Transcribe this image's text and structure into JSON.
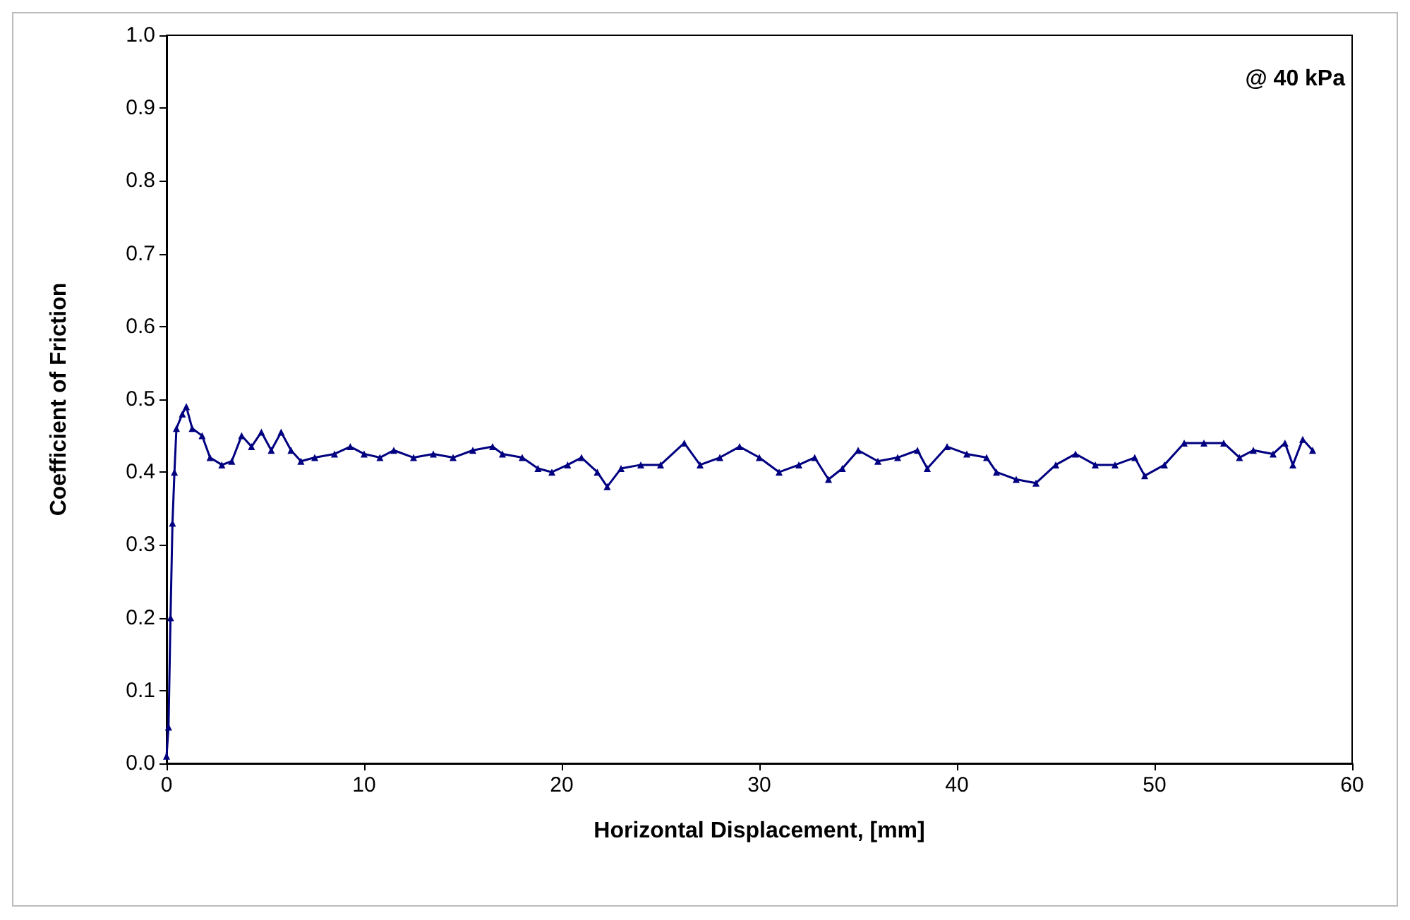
{
  "chart_data": {
    "type": "line",
    "xlabel": "Horizontal Displacement, [mm]",
    "ylabel": "Coefficient of Friction",
    "annotations": [
      "@ 40 kPa"
    ],
    "x": [
      0,
      0.1,
      0.2,
      0.3,
      0.4,
      0.5,
      0.8,
      1.0,
      1.3,
      1.8,
      2.2,
      2.8,
      3.3,
      3.8,
      4.3,
      4.8,
      5.3,
      5.8,
      6.3,
      6.8,
      7.5,
      8.5,
      9.3,
      10,
      10.8,
      11.5,
      12.5,
      13.5,
      14.5,
      15.5,
      16.5,
      17,
      18,
      18.8,
      19.5,
      20.3,
      21,
      21.8,
      22.3,
      23,
      24,
      25,
      26.2,
      27,
      28,
      29,
      30,
      31,
      32,
      32.8,
      33.5,
      34.2,
      35,
      36,
      37,
      38,
      38.5,
      39.5,
      40.5,
      41.5,
      42,
      43,
      44,
      45,
      46,
      47,
      48,
      49,
      49.5,
      50.5,
      51.5,
      52.5,
      53.5,
      54.3,
      55,
      56,
      56.6,
      57,
      57.5,
      58
    ],
    "series": [
      {
        "color": "#000080",
        "values": [
          0.01,
          0.05,
          0.2,
          0.33,
          0.4,
          0.46,
          0.48,
          0.49,
          0.46,
          0.45,
          0.42,
          0.41,
          0.415,
          0.45,
          0.435,
          0.455,
          0.43,
          0.455,
          0.43,
          0.415,
          0.42,
          0.425,
          0.435,
          0.425,
          0.42,
          0.43,
          0.42,
          0.425,
          0.42,
          0.43,
          0.435,
          0.425,
          0.42,
          0.405,
          0.4,
          0.41,
          0.42,
          0.4,
          0.38,
          0.405,
          0.41,
          0.41,
          0.44,
          0.41,
          0.42,
          0.435,
          0.42,
          0.4,
          0.41,
          0.42,
          0.39,
          0.405,
          0.43,
          0.415,
          0.42,
          0.43,
          0.405,
          0.435,
          0.425,
          0.42,
          0.4,
          0.39,
          0.385,
          0.41,
          0.425,
          0.41,
          0.41,
          0.42,
          0.395,
          0.41,
          0.44,
          0.44,
          0.44,
          0.42,
          0.43,
          0.425,
          0.44,
          0.41,
          0.445,
          0.43
        ]
      }
    ],
    "xlim": [
      0,
      60
    ],
    "xticks": [
      0,
      10,
      20,
      30,
      40,
      50,
      60
    ],
    "ylim": [
      0,
      1
    ],
    "yticks": [
      {
        "value": 0,
        "label": "0.0"
      },
      {
        "value": 0.1,
        "label": "0.1"
      },
      {
        "value": 0.2,
        "label": "0.2"
      },
      {
        "value": 0.3,
        "label": "0.3"
      },
      {
        "value": 0.4,
        "label": "0.4"
      },
      {
        "value": 0.5,
        "label": "0.5"
      },
      {
        "value": 0.6,
        "label": "0.6"
      },
      {
        "value": 0.7,
        "label": "0.7"
      },
      {
        "value": 0.8,
        "label": "0.8"
      },
      {
        "value": 0.9,
        "label": "0.9"
      },
      {
        "value": 1,
        "label": "1.0"
      }
    ],
    "grid": false,
    "marker": "triangle",
    "line_style": "solid"
  }
}
